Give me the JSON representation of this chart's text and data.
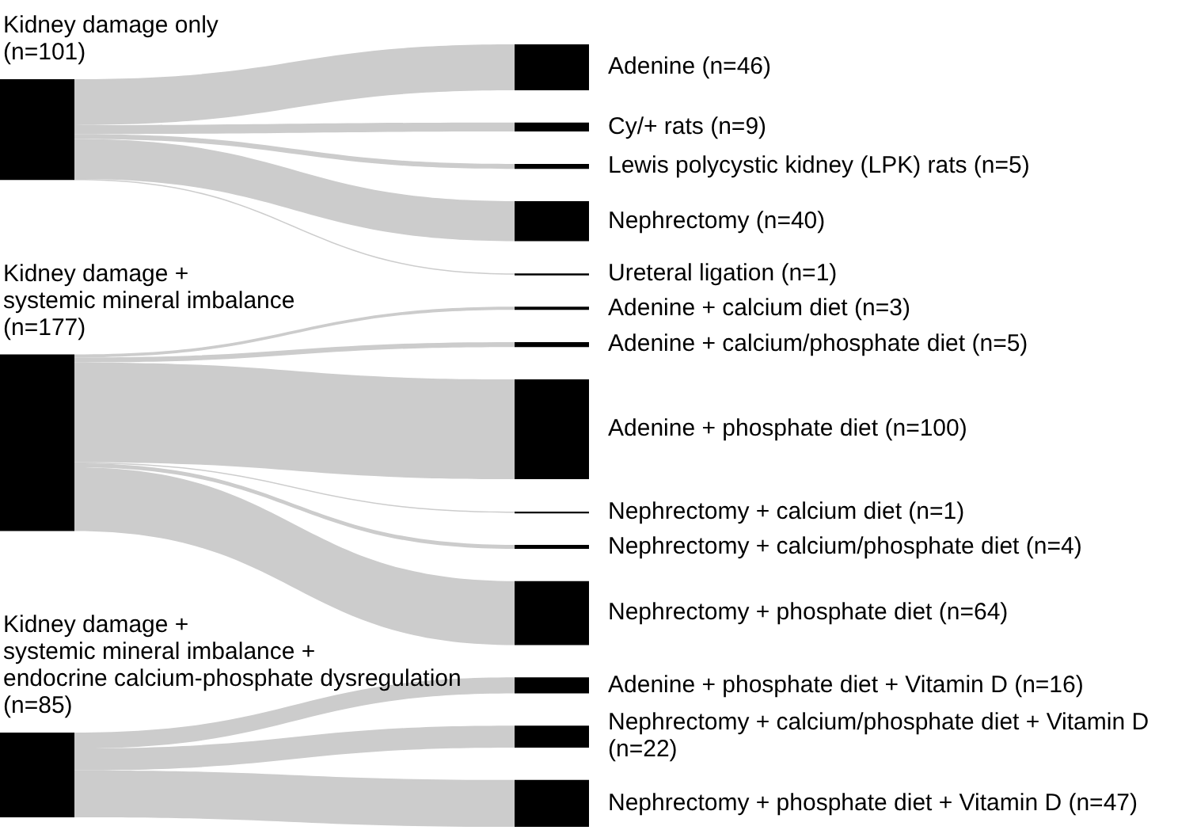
{
  "chart_data": {
    "type": "other",
    "categories": [
      "Adenine",
      "Cy/+ rats",
      "Lewis polycystic kidney (LPK) rats",
      "Nephrectomy",
      "Ureteral ligation",
      "Adenine + calcium diet",
      "Adenine + calcium/phosphate diet",
      "Adenine + phosphate diet",
      "Nephrectomy + calcium diet",
      "Nephrectomy + calcium/phosphate diet",
      "Nephrectomy + phosphate diet",
      "Adenine + phosphate diet + Vitamin D",
      "Nephrectomy + calcium/phosphate diet + Vitamin D",
      "Nephrectomy + phosphate diet + Vitamin D"
    ],
    "series": [
      {
        "name": "Kidney damage only\n(n=101)",
        "values": [
          46,
          9,
          5,
          40,
          1,
          null,
          null,
          null,
          null,
          null,
          null,
          null,
          null,
          null
        ],
        "value_labels": [
          "(n=46)",
          "(n=9)",
          "(n=5)",
          "(n=40)",
          "(n=1)",
          null,
          null,
          null,
          null,
          null,
          null,
          null,
          null,
          null
        ]
      },
      {
        "name": "Kidney damage +\nsystemic mineral imbalance\n(n=177)",
        "values": [
          null,
          null,
          null,
          null,
          null,
          3,
          5,
          100,
          1,
          4,
          64,
          null,
          null,
          null
        ],
        "value_labels": [
          null,
          null,
          null,
          null,
          null,
          "(n=3)",
          "(n=5)",
          "(n=100)",
          "(n=1)",
          "(n=4)",
          "(n=64)",
          null,
          null,
          null
        ]
      },
      {
        "name": "Kidney damage +\nsystemic mineral imbalance +\nendocrine calcium-phosphate dysregulation\n(n=85)",
        "values": [
          null,
          null,
          null,
          null,
          null,
          null,
          null,
          null,
          null,
          null,
          null,
          16,
          22,
          47
        ],
        "value_labels": [
          null,
          null,
          null,
          null,
          null,
          null,
          null,
          null,
          null,
          null,
          null,
          "(n=16)",
          "(n=22)",
          "(n=47)"
        ]
      }
    ]
  }
}
